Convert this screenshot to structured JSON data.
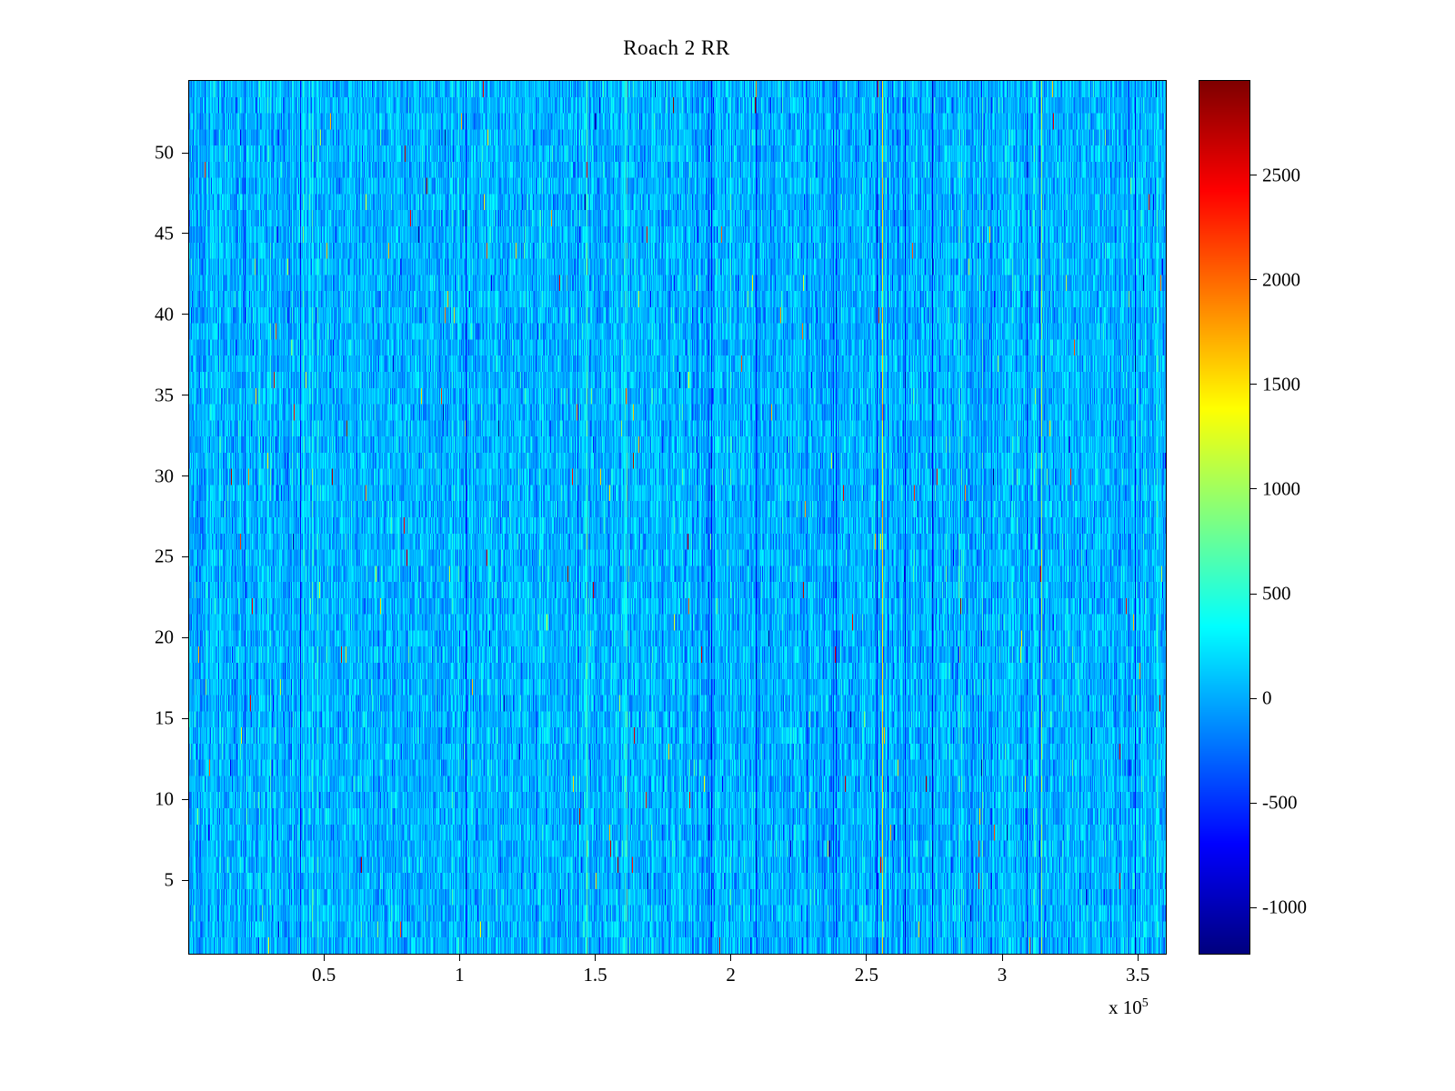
{
  "chart_data": {
    "type": "heatmap",
    "title": "Roach 2 RR",
    "xlabel": "",
    "ylabel": "",
    "x_ticks": [
      0.5,
      1,
      1.5,
      2,
      2.5,
      3,
      3.5
    ],
    "x_tick_labels": [
      "0.5",
      "1",
      "1.5",
      "2",
      "2.5",
      "3",
      "3.5"
    ],
    "x_exponent_label": {
      "prefix": "x 10",
      "exp": "5"
    },
    "xlim": [
      0,
      3.6
    ],
    "x_unit_scale": 100000,
    "y_ticks": [
      5,
      10,
      15,
      20,
      25,
      30,
      35,
      40,
      45,
      50
    ],
    "y_tick_labels": [
      "5",
      "10",
      "15",
      "20",
      "25",
      "30",
      "35",
      "40",
      "45",
      "50"
    ],
    "ylim": [
      0.5,
      54.5
    ],
    "rows": 54,
    "columns_depicted": 360000,
    "grid": false,
    "legend": false,
    "colormap": "jet",
    "clim": [
      -1217,
      2956
    ],
    "colorbar_position": "right",
    "colorbar_ticks": [
      -1000,
      -500,
      0,
      500,
      1000,
      1500,
      2000,
      2500
    ],
    "colorbar_tick_labels": [
      "-1000",
      "-500",
      "0",
      "500",
      "1000",
      "1500",
      "2000",
      "2500"
    ],
    "colors": {
      "background": "#ffffff",
      "axis": "#000000",
      "dominant_cell": "#25b2f2",
      "jet_low": "#00008f",
      "jet_high": "#7f0000"
    },
    "description": "Dense noise heatmap: ~54 rows by ~3.6e5 samples, values clustered near 0 (cyan-blue) with column-correlated vertical streaks; sparse hot specks up to ~2900 (yellow/red) and sparse cold specks down to ~-1200 (dark blue).",
    "noise_model": {
      "seed": 20240613,
      "mean": 40,
      "column_std": 90,
      "cell_std": 160,
      "dark_column_prob": 0.015,
      "bright_column_prob": 0.02,
      "hot_column_prob": 0.004,
      "hot_speck_prob": 0.003,
      "cold_speck_prob": 0.0015
    }
  }
}
